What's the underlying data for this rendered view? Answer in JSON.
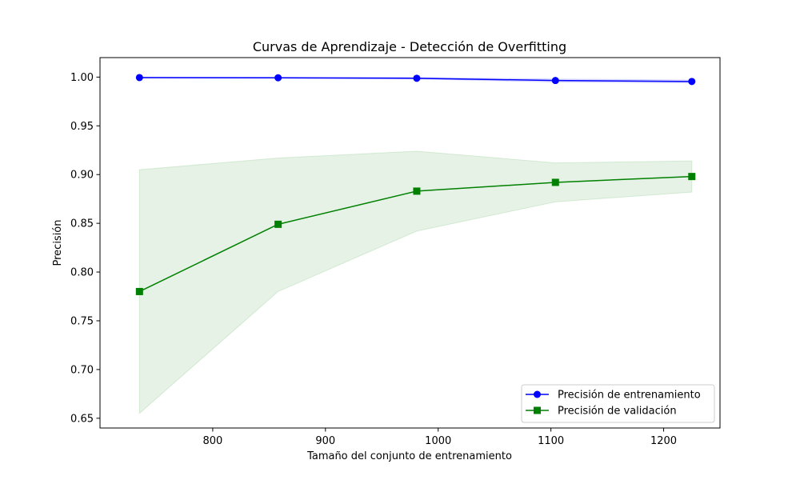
{
  "chart_data": {
    "type": "line",
    "title": "Curvas de Aprendizaje - Detección de Overfitting",
    "xlabel": "Tamaño del conjunto de entrenamiento",
    "ylabel": "Precisión",
    "xlim": [
      700,
      1250
    ],
    "ylim": [
      0.64,
      1.02
    ],
    "xticks": [
      800,
      900,
      1000,
      1100,
      1200
    ],
    "yticks": [
      0.65,
      0.7,
      0.75,
      0.8,
      0.85,
      0.9,
      0.95,
      1.0
    ],
    "x": [
      735,
      858,
      981,
      1104,
      1225
    ],
    "series": [
      {
        "name": "Precisión de entrenamiento",
        "values": [
          0.9995,
          0.9993,
          0.9988,
          0.9965,
          0.9955
        ],
        "band_low": [
          0.999,
          0.9988,
          0.998,
          0.995,
          0.994
        ],
        "band_high": [
          1.0,
          0.9998,
          0.9996,
          0.998,
          0.997
        ],
        "color": "#0000ff",
        "band_color": "#0000ff",
        "marker": "circle"
      },
      {
        "name": "Precisión de validación",
        "values": [
          0.78,
          0.849,
          0.883,
          0.892,
          0.898
        ],
        "band_low": [
          0.655,
          0.78,
          0.842,
          0.872,
          0.882
        ],
        "band_high": [
          0.905,
          0.917,
          0.924,
          0.912,
          0.914
        ],
        "color": "#008000",
        "band_color": "#008000",
        "marker": "square"
      }
    ],
    "legend_position": "lower-right",
    "grid": false
  }
}
